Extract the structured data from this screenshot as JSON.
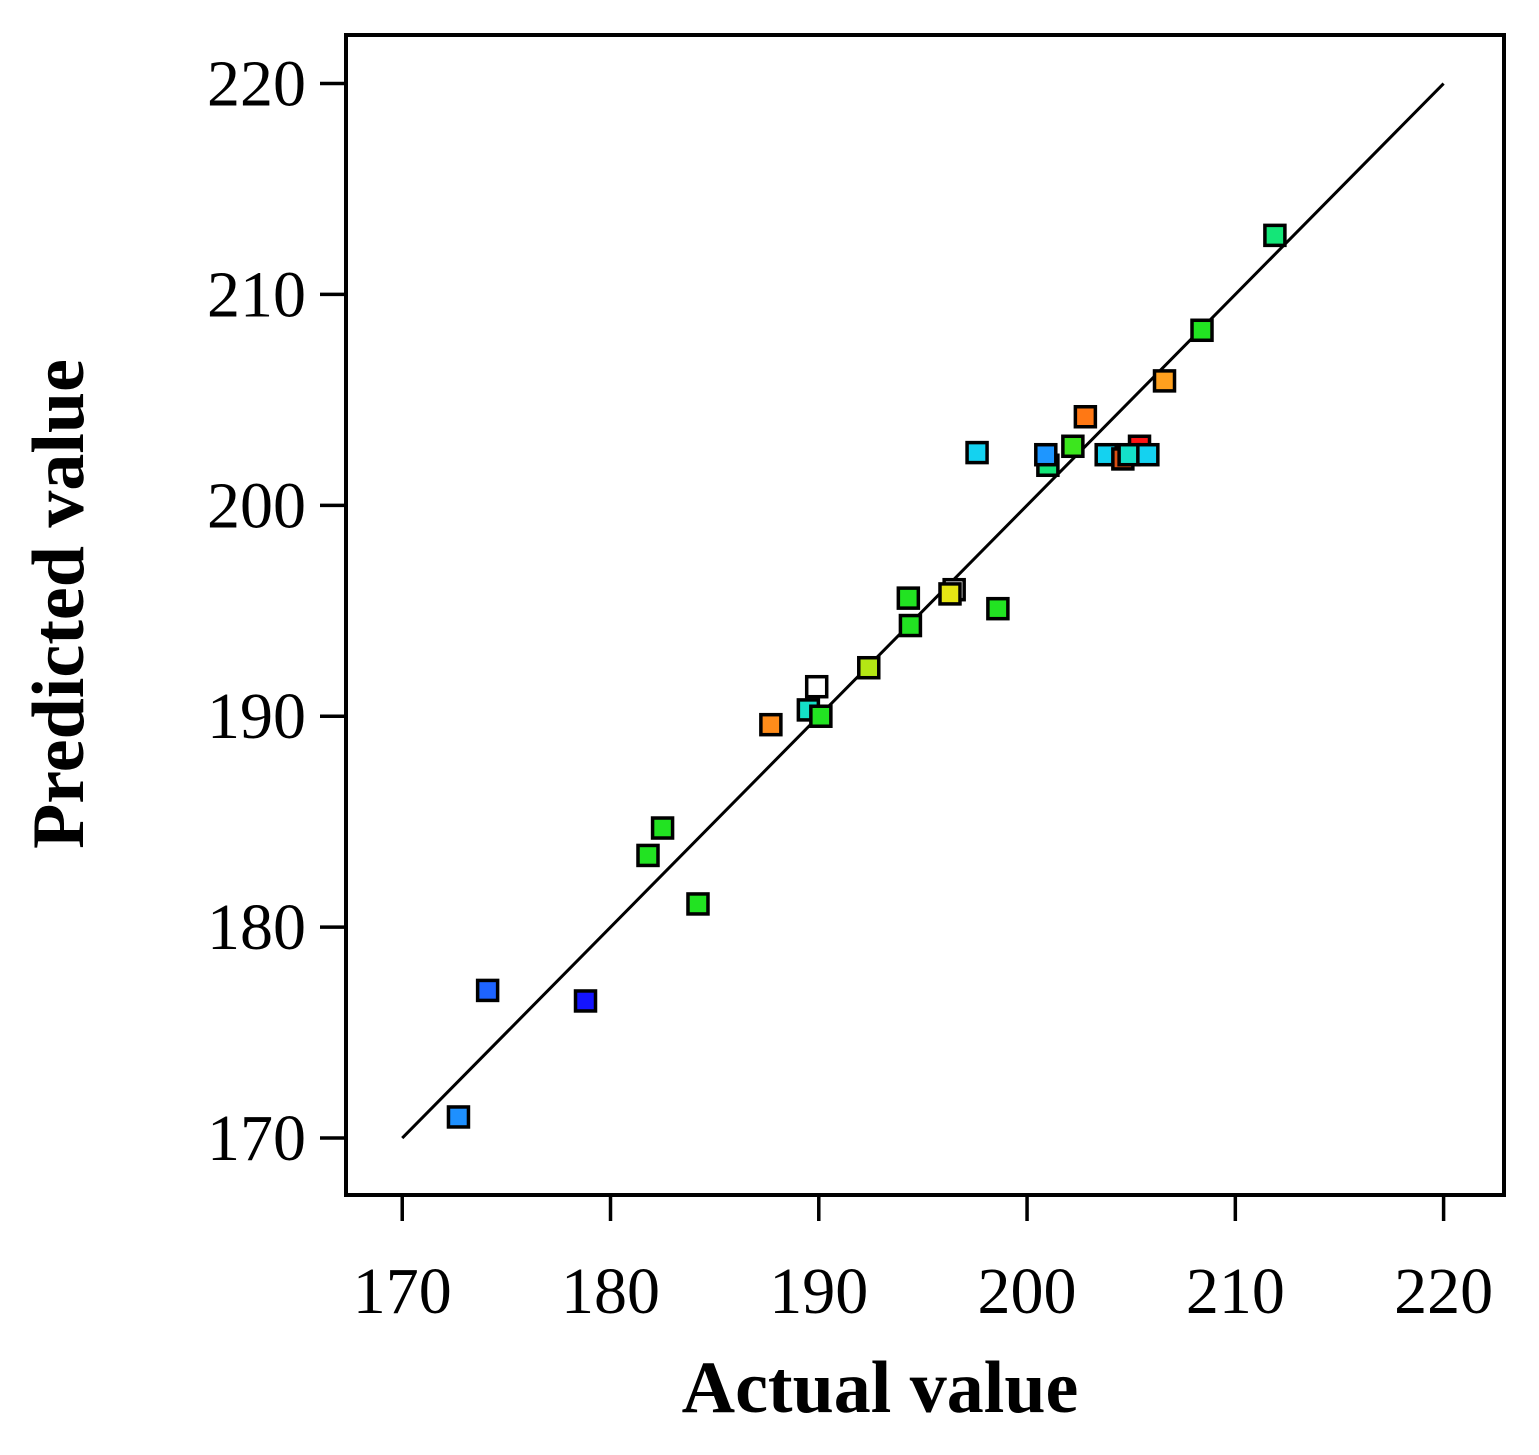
{
  "chart_data": {
    "type": "scatter",
    "title": "",
    "xlabel": "Actual value",
    "ylabel": "Predicted value",
    "xlim": [
      167.3,
      222.9
    ],
    "ylim": [
      167.3,
      222.3
    ],
    "xticks": [
      170,
      180,
      190,
      200,
      210,
      220
    ],
    "yticks": [
      170,
      180,
      190,
      200,
      210,
      220
    ],
    "xtick_labels": [
      "170",
      "180",
      "190",
      "200",
      "210",
      "220"
    ],
    "ytick_labels": [
      "170",
      "180",
      "190",
      "200",
      "210",
      "220"
    ],
    "grid": false,
    "legend": "none",
    "reference_line": {
      "x": [
        170,
        220
      ],
      "y": [
        170,
        220
      ],
      "color": "#000000"
    },
    "points": [
      {
        "x": 172.7,
        "y": 171.0,
        "color": "#1e90ff"
      },
      {
        "x": 174.1,
        "y": 177.0,
        "color": "#1e64ff"
      },
      {
        "x": 178.8,
        "y": 176.5,
        "color": "#1414ff"
      },
      {
        "x": 181.8,
        "y": 183.4,
        "color": "#22e322"
      },
      {
        "x": 182.5,
        "y": 184.7,
        "color": "#22e322"
      },
      {
        "x": 184.2,
        "y": 181.1,
        "color": "#22e322"
      },
      {
        "x": 187.7,
        "y": 189.6,
        "color": "#ff8c1a"
      },
      {
        "x": 189.5,
        "y": 190.3,
        "color": "#14e0c8"
      },
      {
        "x": 190.1,
        "y": 190.0,
        "color": "#22e322"
      },
      {
        "x": 189.9,
        "y": 191.4,
        "color": "#ffffff"
      },
      {
        "x": 192.4,
        "y": 192.3,
        "color": "#b4e614"
      },
      {
        "x": 194.3,
        "y": 195.6,
        "color": "#22e322"
      },
      {
        "x": 194.4,
        "y": 194.3,
        "color": "#22e322"
      },
      {
        "x": 196.5,
        "y": 196.0,
        "color": "#ffffff"
      },
      {
        "x": 196.3,
        "y": 195.8,
        "color": "#e6e614"
      },
      {
        "x": 198.6,
        "y": 195.1,
        "color": "#22e322"
      },
      {
        "x": 197.6,
        "y": 202.5,
        "color": "#14d2f0"
      },
      {
        "x": 201.0,
        "y": 201.9,
        "color": "#14e678"
      },
      {
        "x": 200.9,
        "y": 202.4,
        "color": "#1e96ff"
      },
      {
        "x": 202.2,
        "y": 202.8,
        "color": "#3ce61e"
      },
      {
        "x": 202.8,
        "y": 204.2,
        "color": "#ff7814"
      },
      {
        "x": 203.8,
        "y": 202.4,
        "color": "#14d2f0"
      },
      {
        "x": 204.6,
        "y": 202.2,
        "color": "#dc5014"
      },
      {
        "x": 205.4,
        "y": 202.8,
        "color": "#ff1414"
      },
      {
        "x": 204.9,
        "y": 202.4,
        "color": "#14e0c8"
      },
      {
        "x": 205.8,
        "y": 202.4,
        "color": "#14d2f0"
      },
      {
        "x": 206.6,
        "y": 205.9,
        "color": "#ffa01e"
      },
      {
        "x": 208.4,
        "y": 208.3,
        "color": "#22e322"
      },
      {
        "x": 211.9,
        "y": 212.8,
        "color": "#14e678"
      }
    ]
  }
}
